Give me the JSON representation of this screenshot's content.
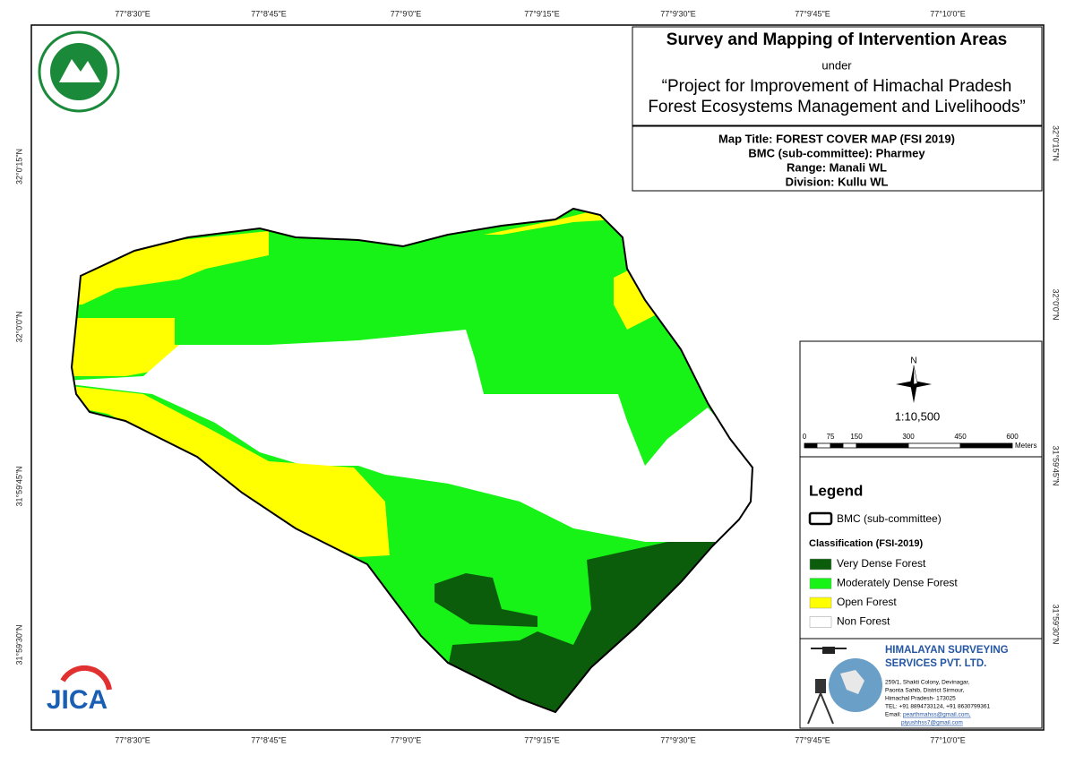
{
  "graticule": {
    "top": [
      "77°8'30\"E",
      "77°8'45\"E",
      "77°9'0\"E",
      "77°9'15\"E",
      "77°9'30\"E",
      "77°9'45\"E",
      "77°10'0\"E"
    ],
    "bottom": [
      "77°8'30\"E",
      "77°8'45\"E",
      "77°9'0\"E",
      "77°9'15\"E",
      "77°9'30\"E",
      "77°9'45\"E",
      "77°10'0\"E"
    ],
    "left": [
      "32°0'15\"N",
      "32°0'0\"N",
      "31°59'45\"N",
      "31°59'30\"N"
    ],
    "right": [
      "32°0'15\"N",
      "32°0'0\"N",
      "31°59'45\"N",
      "31°59'30\"N"
    ]
  },
  "title_block": {
    "title": "Survey and Mapping of Intervention Areas",
    "under": "under",
    "project_line1": "“Project for Improvement of Himachal Pradesh",
    "project_line2": "Forest Ecosystems Management and Livelihoods”"
  },
  "map_info": {
    "map_title": "Map Title: FOREST COVER MAP (FSI 2019)",
    "bmc": "BMC (sub-committee): Pharmey",
    "range": "Range: Manali WL",
    "division": "Division: Kullu WL"
  },
  "north": "N",
  "scale": "1:10,500",
  "scale_bar": {
    "labels": [
      "0",
      "75",
      "150",
      "300",
      "450",
      "600"
    ],
    "unit": "Meters"
  },
  "legend": {
    "title": "Legend",
    "boundary": "BMC (sub-committee)",
    "classification_title": "Classification (FSI-2019)",
    "items": [
      {
        "label": "Very Dense Forest",
        "color": "#0b5d0b"
      },
      {
        "label": "Moderately Dense Forest",
        "color": "#17f317"
      },
      {
        "label": "Open Forest",
        "color": "#ffff00"
      },
      {
        "label": "Non Forest",
        "color": "#ffffff"
      }
    ]
  },
  "company": {
    "name_line1": "HIMALAYAN SURVEYING",
    "name_line2": "SERVICES PVT. LTD.",
    "address": [
      "259/1, Shakti Colony, Devinagar,",
      "Paonta Sahib, District Sirmour,",
      "Himachal Pradesh- 173025",
      "TEL: +91 8894733124, +91 8630799361"
    ],
    "email_label": "Email:",
    "emails": [
      "pearthmahss@gmail.com,",
      "piyushhss7@gmail.com"
    ]
  },
  "logo_jica": "JICA"
}
